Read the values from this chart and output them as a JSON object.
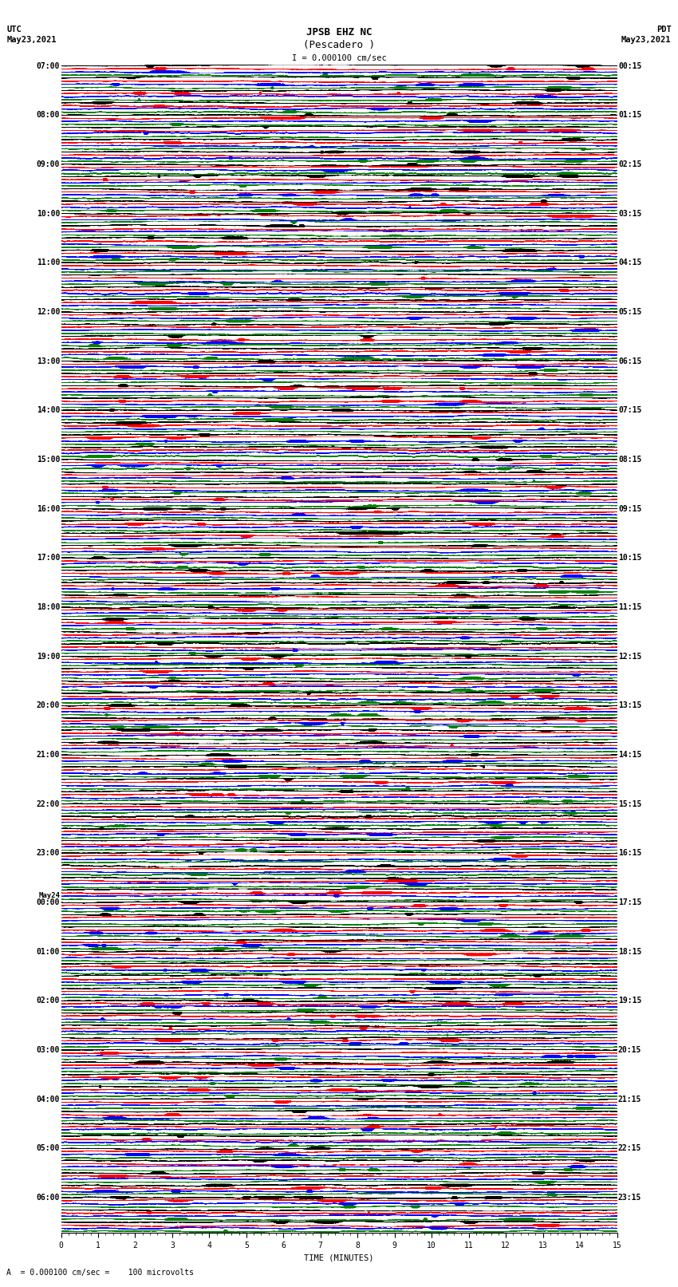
{
  "title_line1": "JPSB EHZ NC",
  "title_line2": "(Pescadero )",
  "scale_label": "I = 0.000100 cm/sec",
  "left_header_line1": "UTC",
  "left_header_line2": "May23,2021",
  "right_header_line1": "PDT",
  "right_header_line2": "May23,2021",
  "bottom_label": "TIME (MINUTES)",
  "bottom_note": "A  = 0.000100 cm/sec =    100 microvolts",
  "utc_labels": [
    "07:00",
    "08:00",
    "09:00",
    "10:00",
    "11:00",
    "12:00",
    "13:00",
    "14:00",
    "15:00",
    "16:00",
    "17:00",
    "18:00",
    "19:00",
    "20:00",
    "21:00",
    "22:00",
    "23:00",
    "00:00",
    "01:00",
    "02:00",
    "03:00",
    "04:00",
    "05:00",
    "06:00"
  ],
  "utc_label_rows": [
    0,
    4,
    8,
    12,
    16,
    20,
    24,
    28,
    32,
    36,
    40,
    44,
    48,
    52,
    56,
    60,
    64,
    68,
    72,
    76,
    80,
    84,
    88,
    92
  ],
  "pdt_labels": [
    "00:15",
    "01:15",
    "02:15",
    "03:15",
    "04:15",
    "05:15",
    "06:15",
    "07:15",
    "08:15",
    "09:15",
    "10:15",
    "11:15",
    "12:15",
    "13:15",
    "14:15",
    "15:15",
    "16:15",
    "17:15",
    "18:15",
    "19:15",
    "20:15",
    "21:15",
    "22:15",
    "23:15"
  ],
  "may24_row": 68,
  "trace_colors": [
    "black",
    "red",
    "blue",
    "green"
  ],
  "num_rows": 95,
  "traces_per_row": 4,
  "time_minutes": 15,
  "sample_rate": 50,
  "background_color": "white",
  "fig_width": 8.5,
  "fig_height": 16.13,
  "dpi": 100,
  "xmin": 0,
  "xmax": 15,
  "xticks": [
    0,
    1,
    2,
    3,
    4,
    5,
    6,
    7,
    8,
    9,
    10,
    11,
    12,
    13,
    14,
    15
  ],
  "title_fontsize": 9,
  "label_fontsize": 7.5,
  "tick_fontsize": 7,
  "time_label_fontsize": 7
}
